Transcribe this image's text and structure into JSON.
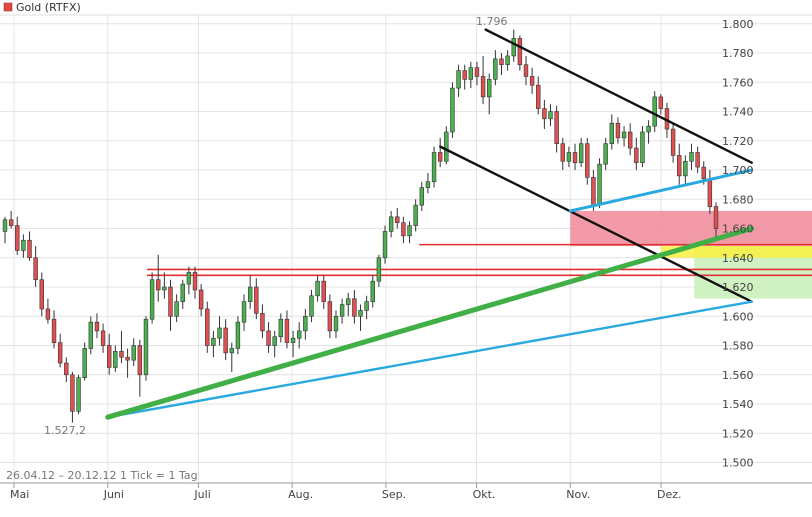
{
  "chart_data": {
    "type": "candlestick",
    "legend": "Gold (RTFX)",
    "legend_color": "#e04848",
    "info": "26.04.12 – 20.12.12   1 Tick = 1 Tag",
    "x_labels": [
      "Mai",
      "Juni",
      "Juli",
      "Aug.",
      "Sep.",
      "Okt.",
      "Nov.",
      "Dez."
    ],
    "y_ticks": [
      "1.800",
      "1.780",
      "1.760",
      "1.740",
      "1.720",
      "1.700",
      "1.680",
      "1.660",
      "1.640",
      "1.620",
      "1.600",
      "1.580",
      "1.560",
      "1.540",
      "1.520",
      "1.500"
    ],
    "ylim": [
      1486,
      1806
    ],
    "high_label": "1.796",
    "low_label": "1.527,2",
    "grid": true,
    "up_color": "#4caf50",
    "down_color": "#e05050",
    "candles": [
      [
        1658,
        1668,
        1650,
        1666
      ],
      [
        1666,
        1672,
        1660,
        1662
      ],
      [
        1662,
        1668,
        1642,
        1645
      ],
      [
        1645,
        1656,
        1640,
        1652
      ],
      [
        1652,
        1658,
        1638,
        1640
      ],
      [
        1640,
        1648,
        1620,
        1625
      ],
      [
        1625,
        1630,
        1600,
        1605
      ],
      [
        1605,
        1612,
        1595,
        1598
      ],
      [
        1598,
        1604,
        1578,
        1582
      ],
      [
        1582,
        1588,
        1565,
        1568
      ],
      [
        1568,
        1572,
        1555,
        1560
      ],
      [
        1560,
        1562,
        1527.2,
        1535
      ],
      [
        1535,
        1560,
        1533,
        1558
      ],
      [
        1558,
        1582,
        1556,
        1578
      ],
      [
        1578,
        1600,
        1574,
        1596
      ],
      [
        1596,
        1602,
        1585,
        1590
      ],
      [
        1590,
        1595,
        1575,
        1580
      ],
      [
        1580,
        1588,
        1560,
        1565
      ],
      [
        1565,
        1580,
        1562,
        1576
      ],
      [
        1576,
        1590,
        1568,
        1572
      ],
      [
        1572,
        1578,
        1558,
        1570
      ],
      [
        1570,
        1585,
        1566,
        1580
      ],
      [
        1580,
        1584,
        1545,
        1560
      ],
      [
        1560,
        1600,
        1556,
        1598
      ],
      [
        1598,
        1630,
        1595,
        1625
      ],
      [
        1625,
        1642,
        1610,
        1618
      ],
      [
        1618,
        1630,
        1612,
        1620
      ],
      [
        1620,
        1625,
        1590,
        1600
      ],
      [
        1600,
        1615,
        1596,
        1610
      ],
      [
        1610,
        1625,
        1605,
        1622
      ],
      [
        1622,
        1634,
        1615,
        1630
      ],
      [
        1630,
        1634,
        1612,
        1618
      ],
      [
        1618,
        1622,
        1600,
        1605
      ],
      [
        1605,
        1610,
        1575,
        1580
      ],
      [
        1580,
        1590,
        1572,
        1585
      ],
      [
        1585,
        1600,
        1580,
        1592
      ],
      [
        1592,
        1598,
        1570,
        1575
      ],
      [
        1575,
        1582,
        1562,
        1578
      ],
      [
        1578,
        1600,
        1574,
        1596
      ],
      [
        1596,
        1615,
        1590,
        1610
      ],
      [
        1610,
        1628,
        1605,
        1620
      ],
      [
        1620,
        1626,
        1598,
        1602
      ],
      [
        1602,
        1608,
        1585,
        1590
      ],
      [
        1590,
        1596,
        1575,
        1580
      ],
      [
        1580,
        1590,
        1572,
        1586
      ],
      [
        1586,
        1602,
        1582,
        1598
      ],
      [
        1598,
        1604,
        1578,
        1582
      ],
      [
        1582,
        1590,
        1572,
        1585
      ],
      [
        1585,
        1596,
        1578,
        1590
      ],
      [
        1590,
        1605,
        1584,
        1600
      ],
      [
        1600,
        1618,
        1596,
        1614
      ],
      [
        1614,
        1628,
        1610,
        1624
      ],
      [
        1624,
        1628,
        1605,
        1610
      ],
      [
        1610,
        1615,
        1585,
        1590
      ],
      [
        1590,
        1604,
        1585,
        1600
      ],
      [
        1600,
        1612,
        1595,
        1608
      ],
      [
        1608,
        1616,
        1600,
        1612
      ],
      [
        1612,
        1618,
        1595,
        1600
      ],
      [
        1600,
        1608,
        1590,
        1604
      ],
      [
        1604,
        1614,
        1598,
        1610
      ],
      [
        1610,
        1628,
        1606,
        1624
      ],
      [
        1624,
        1642,
        1620,
        1640
      ],
      [
        1640,
        1662,
        1636,
        1658
      ],
      [
        1658,
        1672,
        1654,
        1668
      ],
      [
        1668,
        1674,
        1660,
        1664
      ],
      [
        1664,
        1668,
        1650,
        1655
      ],
      [
        1655,
        1665,
        1650,
        1662
      ],
      [
        1662,
        1680,
        1658,
        1676
      ],
      [
        1676,
        1692,
        1672,
        1688
      ],
      [
        1688,
        1698,
        1684,
        1692
      ],
      [
        1692,
        1716,
        1688,
        1712
      ],
      [
        1712,
        1722,
        1702,
        1706
      ],
      [
        1706,
        1730,
        1704,
        1726
      ],
      [
        1726,
        1760,
        1722,
        1756
      ],
      [
        1756,
        1772,
        1750,
        1768
      ],
      [
        1768,
        1772,
        1755,
        1762
      ],
      [
        1762,
        1774,
        1756,
        1770
      ],
      [
        1770,
        1774,
        1758,
        1764
      ],
      [
        1764,
        1778,
        1745,
        1750
      ],
      [
        1750,
        1766,
        1738,
        1762
      ],
      [
        1762,
        1782,
        1758,
        1776
      ],
      [
        1776,
        1780,
        1765,
        1772
      ],
      [
        1772,
        1782,
        1768,
        1778
      ],
      [
        1778,
        1796,
        1774,
        1790
      ],
      [
        1790,
        1792,
        1768,
        1772
      ],
      [
        1772,
        1778,
        1758,
        1764
      ],
      [
        1764,
        1770,
        1752,
        1758
      ],
      [
        1758,
        1764,
        1738,
        1742
      ],
      [
        1742,
        1748,
        1728,
        1735
      ],
      [
        1735,
        1745,
        1730,
        1740
      ],
      [
        1740,
        1744,
        1712,
        1718
      ],
      [
        1718,
        1722,
        1700,
        1706
      ],
      [
        1706,
        1716,
        1702,
        1712
      ],
      [
        1712,
        1718,
        1700,
        1705
      ],
      [
        1705,
        1722,
        1702,
        1718
      ],
      [
        1718,
        1722,
        1690,
        1695
      ],
      [
        1695,
        1700,
        1672,
        1676
      ],
      [
        1676,
        1708,
        1674,
        1704
      ],
      [
        1704,
        1722,
        1700,
        1718
      ],
      [
        1718,
        1738,
        1714,
        1732
      ],
      [
        1732,
        1736,
        1718,
        1722
      ],
      [
        1722,
        1730,
        1716,
        1726
      ],
      [
        1726,
        1732,
        1710,
        1715
      ],
      [
        1715,
        1722,
        1700,
        1705
      ],
      [
        1705,
        1730,
        1702,
        1726
      ],
      [
        1726,
        1734,
        1718,
        1730
      ],
      [
        1730,
        1754,
        1726,
        1750
      ],
      [
        1750,
        1752,
        1738,
        1742
      ],
      [
        1742,
        1746,
        1722,
        1728
      ],
      [
        1728,
        1732,
        1705,
        1710
      ],
      [
        1710,
        1718,
        1690,
        1696
      ],
      [
        1696,
        1710,
        1690,
        1706
      ],
      [
        1706,
        1718,
        1700,
        1712
      ],
      [
        1712,
        1716,
        1698,
        1702
      ],
      [
        1702,
        1706,
        1690,
        1694
      ],
      [
        1694,
        1700,
        1670,
        1675
      ],
      [
        1675,
        1678,
        1652,
        1660
      ]
    ],
    "trend_lines": [
      {
        "from": [
          "2012-10-04",
          1796
        ],
        "to": [
          "2012-12-31",
          1705
        ],
        "color": "#111111"
      },
      {
        "from": [
          "2012-09-19",
          1716
        ],
        "to": [
          "2012-12-31",
          1610
        ],
        "color": "#111111"
      },
      {
        "from": [
          "2012-06-01",
          1531
        ],
        "to": [
          "2012-12-31",
          1610
        ],
        "color": "#29a9e0"
      },
      {
        "from": [
          "2012-06-01",
          1531
        ],
        "to": [
          "2012-12-31",
          1660
        ],
        "color": "#3faf46"
      },
      {
        "from": [
          "2012-11-01",
          1672
        ],
        "to": [
          "2012-12-31",
          1700
        ],
        "color": "#29a9e0"
      }
    ],
    "zones": [
      {
        "y": [
          1648,
          1672
        ],
        "from": "2012-11-01",
        "color": "#f08898"
      },
      {
        "y": [
          1612,
          1648
        ],
        "from": "2012-12-12",
        "color": "#c8f0b8"
      },
      {
        "y": [
          1640,
          1648
        ],
        "from": "2012-12-01",
        "color": "#f8f040"
      }
    ],
    "levels": [
      1649,
      1632,
      1628
    ]
  }
}
